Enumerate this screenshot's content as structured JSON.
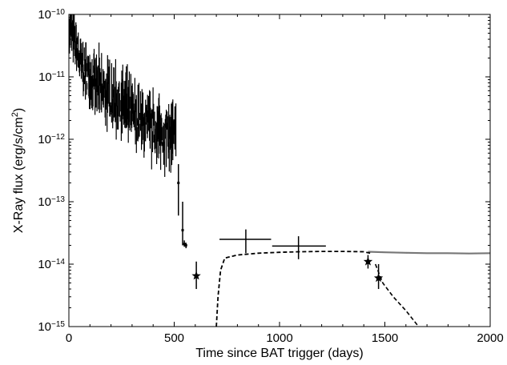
{
  "chart_data": {
    "type": "scatter",
    "title": "",
    "xlabel": "Time since BAT trigger (days)",
    "ylabel_main": "X-Ray flux (erg/s/cm",
    "ylabel_sup": "2",
    "ylabel_tail": ")",
    "xlim": [
      0,
      2000
    ],
    "ylim": [
      1e-15,
      1e-10
    ],
    "yscale": "log",
    "grid": false,
    "legend": "none",
    "x_ticks": [
      0,
      500,
      1000,
      1500,
      2000
    ],
    "x_tick_labels": [
      "0",
      "500",
      "1000",
      "1500",
      "2000"
    ],
    "y_ticks": [
      {
        "value": 1e-10,
        "base": "10",
        "exp": "−10"
      },
      {
        "value": 1e-11,
        "base": "10",
        "exp": "−11"
      },
      {
        "value": 1e-12,
        "base": "10",
        "exp": "−12"
      },
      {
        "value": 1e-13,
        "base": "10",
        "exp": "−13"
      },
      {
        "value": 1e-14,
        "base": "10",
        "exp": "−14"
      },
      {
        "value": 1e-15,
        "base": "10",
        "exp": "−15"
      }
    ],
    "colors": {
      "data": "#000000",
      "model_gray": "#777777",
      "model_dashed": "#000000"
    },
    "series": [
      {
        "kind": "xrt-noisy-lightcurve",
        "color": "#000000",
        "anchors": [
          [
            3,
            8e-11
          ],
          [
            20,
            4e-11
          ],
          [
            40,
            2.5e-11
          ],
          [
            60,
            1.5e-11
          ],
          [
            100,
            1e-11
          ],
          [
            150,
            6e-12
          ],
          [
            200,
            5e-12
          ],
          [
            260,
            3.5e-12
          ],
          [
            320,
            2.2e-12
          ],
          [
            380,
            1.6e-12
          ],
          [
            450,
            1.2e-12
          ],
          [
            510,
            1e-12
          ]
        ]
      },
      {
        "kind": "late-detections",
        "color": "#000000",
        "points": [
          {
            "x": 520,
            "y": 2e-13,
            "ylo": 6e-14,
            "yhi": 4e-13
          },
          {
            "x": 540,
            "y": 3.5e-14,
            "ylo": 2e-14,
            "yhi": 1e-13
          },
          {
            "x": 548,
            "y": 2.1e-14,
            "ylo": 1.9e-14,
            "yhi": 2.4e-14
          },
          {
            "x": 556,
            "y": 2e-14,
            "ylo": 1.8e-14,
            "yhi": 2.2e-14
          }
        ]
      },
      {
        "kind": "stars",
        "color": "#000000",
        "points": [
          {
            "x": 605,
            "y": 6.5e-15,
            "ylo": 4e-15,
            "yhi": 1.1e-14
          },
          {
            "x": 1420,
            "y": 1.1e-14,
            "ylo": 8.5e-15,
            "yhi": 1.4e-14
          },
          {
            "x": 1470,
            "y": 6e-15,
            "ylo": 4e-15,
            "yhi": 1e-14
          }
        ]
      },
      {
        "kind": "big-crosses",
        "color": "#000000",
        "points": [
          {
            "x": 840,
            "xlo": 715,
            "xhi": 960,
            "y": 2.5e-14,
            "ylo": 1.5e-14,
            "yhi": 3.6e-14
          },
          {
            "x": 1090,
            "xlo": 965,
            "xhi": 1220,
            "y": 1.95e-14,
            "ylo": 1.2e-14,
            "yhi": 2.8e-14
          }
        ]
      },
      {
        "kind": "model-gray",
        "color": "#777777",
        "points": [
          [
            1420,
            1.58e-14
          ],
          [
            1500,
            1.55e-14
          ],
          [
            1600,
            1.52e-14
          ],
          [
            1700,
            1.5e-14
          ],
          [
            1800,
            1.5e-14
          ],
          [
            1900,
            1.48e-14
          ],
          [
            2000,
            1.5e-14
          ]
        ]
      },
      {
        "kind": "model-dashed",
        "color": "#000000",
        "points": [
          [
            700,
            1e-15
          ],
          [
            708,
            3e-15
          ],
          [
            720,
            8e-15
          ],
          [
            740,
            1.25e-14
          ],
          [
            800,
            1.4e-14
          ],
          [
            900,
            1.5e-14
          ],
          [
            1000,
            1.55e-14
          ],
          [
            1100,
            1.58e-14
          ],
          [
            1200,
            1.6e-14
          ],
          [
            1300,
            1.6e-14
          ],
          [
            1400,
            1.58e-14
          ],
          [
            1430,
            1.5e-14
          ],
          [
            1455,
            1e-14
          ],
          [
            1490,
            5e-15
          ],
          [
            1540,
            3e-15
          ],
          [
            1600,
            1.8e-15
          ],
          [
            1660,
            1e-15
          ]
        ]
      }
    ]
  }
}
